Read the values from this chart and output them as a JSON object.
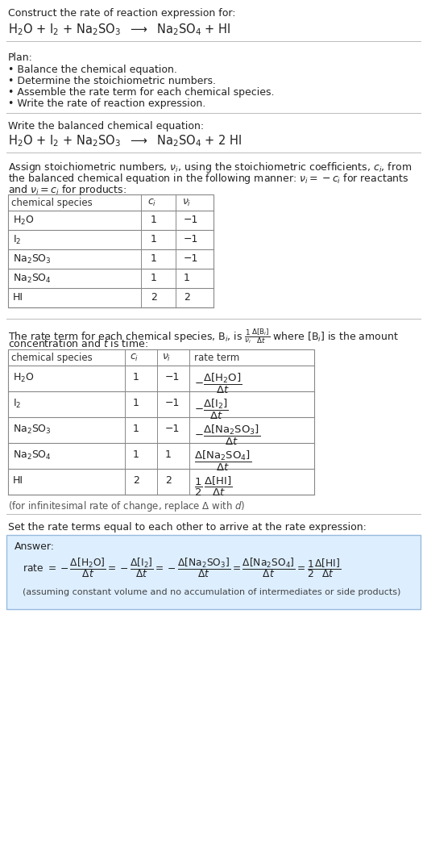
{
  "bg_color": "#ffffff",
  "text_color": "#222222",
  "line_color": "#aaaaaa",
  "answer_bg": "#ddeeff",
  "answer_border": "#88aacc",
  "title": "Construct the rate of reaction expression for:",
  "rxn_unbalanced": "H$_2$O + I$_2$ + Na$_2$SO$_3$  $\\longrightarrow$  Na$_2$SO$_4$ + HI",
  "plan_header": "Plan:",
  "plan_items": [
    "\\u2022 Balance the chemical equation.",
    "\\u2022 Determine the stoichiometric numbers.",
    "\\u2022 Assemble the rate term for each chemical species.",
    "\\u2022 Write the rate of reaction expression."
  ],
  "balanced_header": "Write the balanced chemical equation:",
  "rxn_balanced": "H$_2$O + I$_2$ + Na$_2$SO$_3$  $\\longrightarrow$  Na$_2$SO$_4$ + 2 HI",
  "stoich_line1": "Assign stoichiometric numbers, $\\nu_i$, using the stoichiometric coefficients, $c_i$, from",
  "stoich_line2": "the balanced chemical equation in the following manner: $\\nu_i = -c_i$ for reactants",
  "stoich_line3": "and $\\nu_i = c_i$ for products:",
  "t1_headers": [
    "chemical species",
    "$c_i$",
    "$\\nu_i$"
  ],
  "t1_species": [
    "H$_2$O",
    "I$_2$",
    "Na$_2$SO$_3$",
    "Na$_2$SO$_4$",
    "HI"
  ],
  "t1_ci": [
    "1",
    "1",
    "1",
    "1",
    "2"
  ],
  "t1_vi": [
    "-1",
    "-1",
    "-1",
    "1",
    "2"
  ],
  "rate_line1": "The rate term for each chemical species, B$_i$, is $\\frac{1}{\\nu_i}\\frac{\\Delta[\\mathrm{B}_i]}{\\Delta t}$ where [B$_i$] is the amount",
  "rate_line2": "concentration and $t$ is time:",
  "t2_headers": [
    "chemical species",
    "$c_i$",
    "$\\nu_i$",
    "rate term"
  ],
  "t2_species": [
    "H$_2$O",
    "I$_2$",
    "Na$_2$SO$_3$",
    "Na$_2$SO$_4$",
    "HI"
  ],
  "t2_ci": [
    "1",
    "1",
    "1",
    "1",
    "2"
  ],
  "t2_vi": [
    "-1",
    "-1",
    "-1",
    "1",
    "2"
  ],
  "t2_rate": [
    "$-\\dfrac{\\Delta[\\mathrm{H_2O}]}{\\Delta t}$",
    "$-\\dfrac{\\Delta[\\mathrm{I_2}]}{\\Delta t}$",
    "$-\\dfrac{\\Delta[\\mathrm{Na_2SO_3}]}{\\Delta t}$",
    "$\\dfrac{\\Delta[\\mathrm{Na_2SO_4}]}{\\Delta t}$",
    "$\\dfrac{1}{2}\\dfrac{\\Delta[\\mathrm{HI}]}{\\Delta t}$"
  ],
  "inf_note": "(for infinitesimal rate of change, replace $\\Delta$ with $d$)",
  "set_equal": "Set the rate terms equal to each other to arrive at the rate expression:",
  "answer_label": "Answer:",
  "answer_eq": "rate $= -\\dfrac{\\Delta[\\mathrm{H_2O}]}{\\Delta t} = -\\dfrac{\\Delta[\\mathrm{I_2}]}{\\Delta t} = -\\dfrac{\\Delta[\\mathrm{Na_2SO_3}]}{\\Delta t} = \\dfrac{\\Delta[\\mathrm{Na_2SO_4}]}{\\Delta t} = \\dfrac{1}{2}\\dfrac{\\Delta[\\mathrm{HI}]}{\\Delta t}$",
  "answer_note": "(assuming constant volume and no accumulation of intermediates or side products)"
}
